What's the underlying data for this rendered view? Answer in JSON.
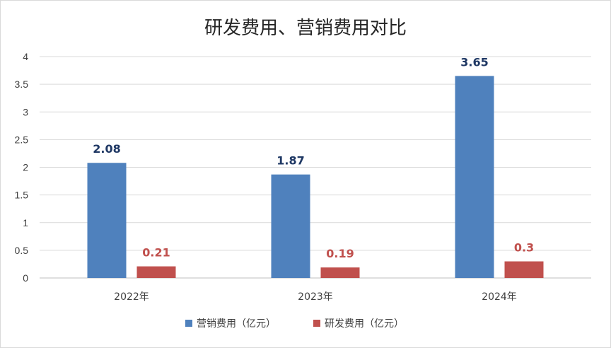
{
  "chart_data": {
    "type": "bar",
    "title": "研发费用、营销费用对比",
    "categories": [
      "2022年",
      "2023年",
      "2024年"
    ],
    "series": [
      {
        "name": "营销费用（亿元）",
        "values": [
          2.08,
          1.87,
          3.65
        ],
        "color": "#4f81bd",
        "label_color": "#1f3864"
      },
      {
        "name": "研发费用（亿元）",
        "values": [
          0.21,
          0.19,
          0.3
        ],
        "color": "#c0504d",
        "label_color": "#c0504d"
      }
    ],
    "y_ticks": [
      "0",
      "0.5",
      "1",
      "1.5",
      "2",
      "2.5",
      "3",
      "3.5",
      "4"
    ],
    "ylim": [
      0,
      4
    ],
    "grid": true,
    "legend_position": "bottom"
  }
}
